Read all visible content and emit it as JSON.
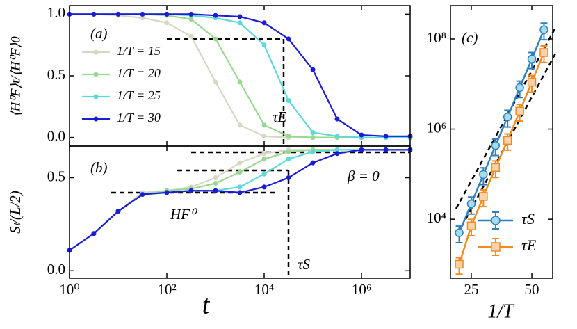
{
  "chart_data": [
    {
      "type": "line",
      "panel_label": "(a)",
      "y_label": "⟨H⁰F⟩t/⟨H⁰F⟩0",
      "annotation": "τE",
      "x_scale": "log",
      "xlim": [
        1,
        10000000
      ],
      "ylim": [
        -0.07,
        1.07
      ],
      "yticks": [
        {
          "value": 0,
          "label": "0.0"
        },
        0.5,
        {
          "value": 1,
          "label": "1.0"
        }
      ],
      "x": [
        1,
        3.162,
        10,
        31.62,
        100,
        316.2,
        1000,
        3162,
        10000,
        31620,
        100000,
        316200,
        1000000,
        3162000,
        10000000
      ],
      "series": [
        {
          "name": "1/T = 15",
          "color": "#d8d7c3",
          "values": [
            1,
            1,
            0.99,
            0.97,
            0.93,
            0.82,
            0.45,
            0.1,
            0.01,
            0,
            0,
            0,
            0,
            0,
            0
          ]
        },
        {
          "name": "1/T = 20",
          "color": "#98d890",
          "values": [
            1,
            1,
            1,
            1,
            0.99,
            0.96,
            0.8,
            0.45,
            0.1,
            0.01,
            0,
            0,
            0,
            0,
            0
          ]
        },
        {
          "name": "1/T = 25",
          "color": "#5ed8d8",
          "values": [
            1,
            1,
            1,
            1,
            1,
            0.99,
            0.97,
            0.93,
            0.75,
            0.3,
            0.04,
            0.01,
            0,
            0,
            0
          ]
        },
        {
          "name": "1/T = 30",
          "color": "#1c1cd4",
          "values": [
            1,
            1,
            1,
            1,
            1,
            1,
            0.99,
            0.98,
            0.93,
            0.8,
            0.55,
            0.15,
            0.02,
            0.01,
            0.01
          ]
        }
      ]
    },
    {
      "type": "line",
      "panel_label": "(b)",
      "y_label": "Sₗ/(L/2)",
      "x_label": "t",
      "annotations": [
        "β = 0",
        "HF⁰",
        "τS"
      ],
      "x_scale": "log",
      "xlim": [
        1,
        10000000
      ],
      "ylim": [
        -0.04,
        0.67
      ],
      "xticks": [
        {
          "value": 1,
          "label": "10⁰"
        },
        {
          "value": 100,
          "label": "10²"
        },
        {
          "value": 10000,
          "label": "10⁴"
        },
        {
          "value": 1000000,
          "label": "10⁶"
        }
      ],
      "yticks": [
        {
          "value": 0,
          "label": "0.0"
        },
        0.5
      ],
      "x": [
        1,
        3.162,
        10,
        31.62,
        100,
        316.2,
        1000,
        3162,
        10000,
        31620,
        100000,
        316200,
        1000000,
        3162000,
        10000000
      ],
      "series": [
        {
          "color": "#d8d7c3",
          "values": [
            0.11,
            0.2,
            0.32,
            0.42,
            0.43,
            0.45,
            0.5,
            0.58,
            0.63,
            0.65,
            0.65,
            0.65,
            0.65,
            0.65,
            0.65
          ]
        },
        {
          "color": "#98d890",
          "values": [
            0.11,
            0.2,
            0.32,
            0.41,
            0.43,
            0.44,
            0.47,
            0.53,
            0.6,
            0.64,
            0.65,
            0.65,
            0.65,
            0.65,
            0.65
          ]
        },
        {
          "color": "#5ed8d8",
          "values": [
            0.11,
            0.2,
            0.32,
            0.41,
            0.42,
            0.43,
            0.43,
            0.45,
            0.52,
            0.6,
            0.64,
            0.65,
            0.65,
            0.65,
            0.65
          ]
        },
        {
          "color": "#1c1cd4",
          "values": [
            0.11,
            0.2,
            0.32,
            0.41,
            0.42,
            0.43,
            0.43,
            0.42,
            0.45,
            0.5,
            0.58,
            0.63,
            0.65,
            0.65,
            0.65
          ]
        }
      ]
    },
    {
      "type": "errorbar",
      "panel_label": "(c)",
      "x_label": "1/T",
      "y_scale": "log",
      "xlim": [
        16.4,
        58.6
      ],
      "ylim": [
        490,
        550000000
      ],
      "xticks": [
        25,
        50
      ],
      "yticks": [
        {
          "value": 10000,
          "label": "10⁴"
        },
        {
          "value": 1000000,
          "label": "10⁶"
        },
        {
          "value": 100000000,
          "label": "10⁸"
        }
      ],
      "x": [
        20,
        25,
        30,
        35,
        40,
        45,
        50,
        55
      ],
      "series": [
        {
          "name": "τS",
          "color": "#2f7fbf",
          "fill": "#a9dcea",
          "marker": "o",
          "values": [
            5000,
            22000,
            98000,
            430000,
            1860000,
            8300000,
            36000000,
            160000000
          ],
          "errors": [
            2000,
            9000,
            40000,
            170000,
            750000,
            3300000,
            14000000,
            64000000
          ]
        },
        {
          "name": "τE",
          "color": "#f5891f",
          "fill": "#fcd3a8",
          "marker": "s",
          "values": [
            1000,
            7100,
            32000,
            140000,
            560000,
            2500000,
            11000000,
            50000000
          ],
          "errors": [
            400,
            2800,
            13000,
            56000,
            220000,
            1000000,
            4400000,
            20000000
          ]
        }
      ]
    }
  ]
}
